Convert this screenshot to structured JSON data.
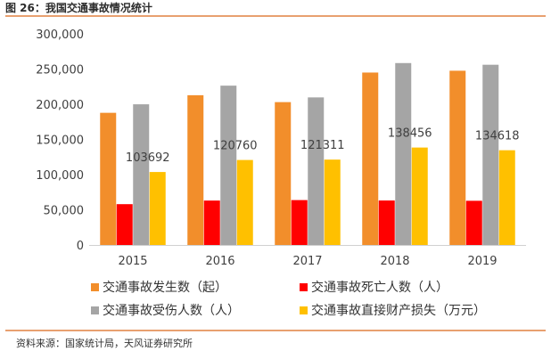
{
  "figure_title": "图 26：我国交通事故情况统计",
  "source_note": "资料来源：国家统计局，天风证券研究所",
  "colors": {
    "accent_rule": "#e8a070",
    "series": [
      "#f28e2b",
      "#ff0000",
      "#a5a5a5",
      "#ffc000"
    ]
  },
  "chart_data": {
    "type": "bar",
    "categories": [
      "2015",
      "2016",
      "2017",
      "2018",
      "2019"
    ],
    "series": [
      {
        "name": "交通事故发生数（起）",
        "values": [
          187800,
          212800,
          203000,
          245000,
          247600
        ]
      },
      {
        "name": "交通事故死亡人数（人）",
        "values": [
          58000,
          63100,
          63800,
          63200,
          62800
        ]
      },
      {
        "name": "交通事故受伤人数（人）",
        "values": [
          199900,
          226400,
          209700,
          258500,
          256100
        ]
      },
      {
        "name": "交通事故直接财产损失（万元）",
        "values": [
          103692,
          120760,
          121311,
          138456,
          134618
        ]
      }
    ],
    "data_labels": {
      "series_index": 3,
      "labels": [
        "103692",
        "120760",
        "121311",
        "138456",
        "134618"
      ]
    },
    "y_ticks": [
      "0",
      "50,000",
      "100,000",
      "150,000",
      "200,000",
      "250,000",
      "300,000"
    ],
    "ylim": [
      0,
      300000
    ],
    "grid": false,
    "legend_position": "bottom"
  }
}
